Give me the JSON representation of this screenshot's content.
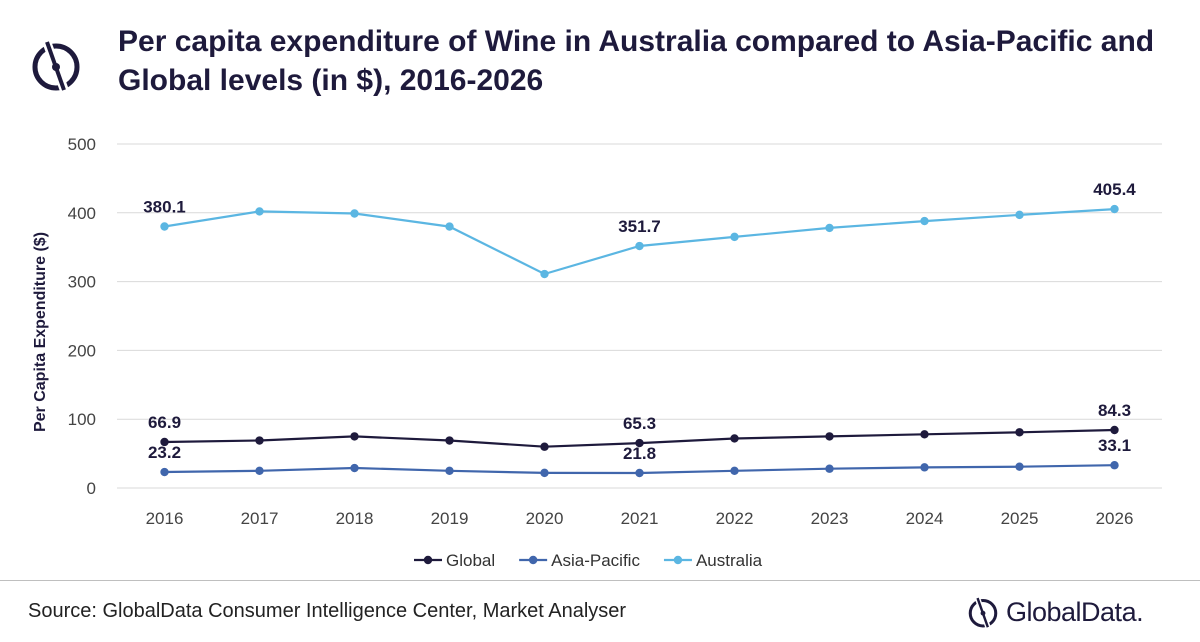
{
  "title": "Per capita expenditure of Wine in Australia compared to Asia-Pacific and Global levels (in $), 2016-2026",
  "source": "Source: GlobalData Consumer Intelligence Center, Market Analyser",
  "brand": "GlobalData.",
  "logo_icon": "globaldata-logo-icon",
  "colors": {
    "global": "#1e1a3c",
    "asia_pacific": "#4066ac",
    "australia": "#5bb6e2",
    "grid": "#d9d9d9"
  },
  "chart_data": {
    "type": "line",
    "title": "Per capita expenditure of Wine in Australia compared to Asia-Pacific and Global levels (in $), 2016-2026",
    "xlabel": "",
    "ylabel": "Per Capita Expenditure ($)",
    "ylim": [
      0,
      500
    ],
    "yticks": [
      0,
      100,
      200,
      300,
      400,
      500
    ],
    "categories": [
      "2016",
      "2017",
      "2018",
      "2019",
      "2020",
      "2021",
      "2022",
      "2023",
      "2024",
      "2025",
      "2026"
    ],
    "legend_position": "bottom",
    "series": [
      {
        "name": "Global",
        "color": "#1e1a3c",
        "values": [
          66.9,
          69,
          75,
          69,
          60,
          65.3,
          72,
          75,
          78,
          81,
          84.3
        ],
        "labels": [
          {
            "index": 0,
            "text": "66.9"
          },
          {
            "index": 5,
            "text": "65.3"
          },
          {
            "index": 10,
            "text": "84.3"
          }
        ]
      },
      {
        "name": "Asia-Pacific",
        "color": "#4066ac",
        "values": [
          23.2,
          25,
          29,
          25,
          22,
          21.8,
          25,
          28,
          30,
          31,
          33.1
        ],
        "labels": [
          {
            "index": 0,
            "text": "23.2"
          },
          {
            "index": 5,
            "text": "21.8"
          },
          {
            "index": 10,
            "text": "33.1"
          }
        ]
      },
      {
        "name": "Australia",
        "color": "#5bb6e2",
        "values": [
          380.1,
          402,
          399,
          380,
          311,
          351.7,
          365,
          378,
          388,
          397,
          405.4
        ],
        "labels": [
          {
            "index": 0,
            "text": "380.1"
          },
          {
            "index": 5,
            "text": "351.7"
          },
          {
            "index": 10,
            "text": "405.4"
          }
        ]
      }
    ]
  }
}
